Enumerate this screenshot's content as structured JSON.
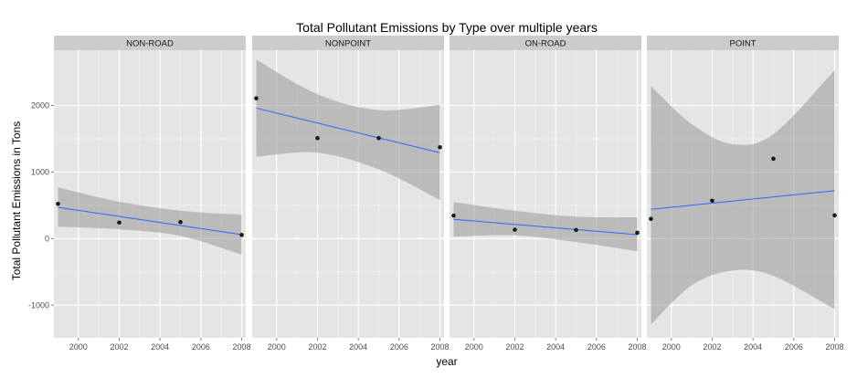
{
  "chart_data": {
    "type": "scatter",
    "title": "Total Pollutant Emissions by Type over multiple years",
    "xlabel": "year",
    "ylabel": "Total Pollutant Emissions in Tons",
    "xlim": [
      1998.8,
      2008.2
    ],
    "ylim": [
      -1490,
      2830
    ],
    "x_ticks": [
      2000,
      2002,
      2004,
      2006,
      2008
    ],
    "x_tick_labels": [
      "2000",
      "2002",
      "2004",
      "2006",
      "2008"
    ],
    "y_ticks": [
      -1000,
      0,
      1000,
      2000
    ],
    "y_tick_labels": [
      "-1000",
      "0",
      "1000",
      "2000"
    ],
    "grid": true,
    "colors": {
      "panel_bg": "#e5e5e5",
      "strip_bg": "#cccccc",
      "grid_major": "#ffffff",
      "grid_minor": "#f2f2f2",
      "ribbon": "#999999",
      "line": "#3366ff",
      "point": "#1a1a1a"
    },
    "panels": [
      {
        "label": "NON-ROAD",
        "x": [
          1999,
          2002,
          2005,
          2008
        ],
        "y": [
          522,
          241,
          249,
          55
        ],
        "fit": {
          "start": [
            1999,
            470
          ],
          "end": [
            2008,
            60
          ]
        },
        "ribbon_upper": [
          [
            1999,
            770
          ],
          [
            2002,
            555
          ],
          [
            2005,
            420
          ],
          [
            2008,
            360
          ]
        ],
        "ribbon_lower": [
          [
            1999,
            180
          ],
          [
            2002,
            140
          ],
          [
            2005,
            40
          ],
          [
            2008,
            -240
          ]
        ]
      },
      {
        "label": "NONPOINT",
        "x": [
          1999,
          2002,
          2005,
          2008
        ],
        "y": [
          2108,
          1510,
          1510,
          1373
        ],
        "fit": {
          "start": [
            1999,
            1960
          ],
          "end": [
            2008,
            1290
          ]
        },
        "ribbon_upper": [
          [
            1999,
            2690
          ],
          [
            2002,
            2170
          ],
          [
            2005,
            1930
          ],
          [
            2008,
            2010
          ]
        ],
        "ribbon_lower": [
          [
            1999,
            1230
          ],
          [
            2002,
            1290
          ],
          [
            2005,
            1040
          ],
          [
            2008,
            580
          ]
        ]
      },
      {
        "label": "ON-ROAD",
        "x": [
          1999,
          2002,
          2005,
          2008
        ],
        "y": [
          346,
          134,
          130,
          88
        ],
        "fit": {
          "start": [
            1999,
            290
          ],
          "end": [
            2008,
            60
          ]
        },
        "ribbon_upper": [
          [
            1999,
            550
          ],
          [
            2002,
            420
          ],
          [
            2005,
            330
          ],
          [
            2008,
            320
          ]
        ],
        "ribbon_lower": [
          [
            1999,
            30
          ],
          [
            2002,
            50
          ],
          [
            2005,
            -50
          ],
          [
            2008,
            -190
          ]
        ]
      },
      {
        "label": "POINT",
        "x": [
          1999,
          2002,
          2005,
          2008
        ],
        "y": [
          297,
          570,
          1200,
          350
        ],
        "fit": {
          "start": [
            1999,
            440
          ],
          "end": [
            2008,
            720
          ]
        },
        "ribbon_upper": [
          [
            1999,
            2290
          ],
          [
            2001,
            1720
          ],
          [
            2003,
            1420
          ],
          [
            2005,
            1570
          ],
          [
            2008,
            2530
          ]
        ],
        "ribbon_lower": [
          [
            1999,
            -1290
          ],
          [
            2001,
            -700
          ],
          [
            2003,
            -480
          ],
          [
            2005,
            -560
          ],
          [
            2008,
            -1060
          ]
        ]
      }
    ]
  }
}
